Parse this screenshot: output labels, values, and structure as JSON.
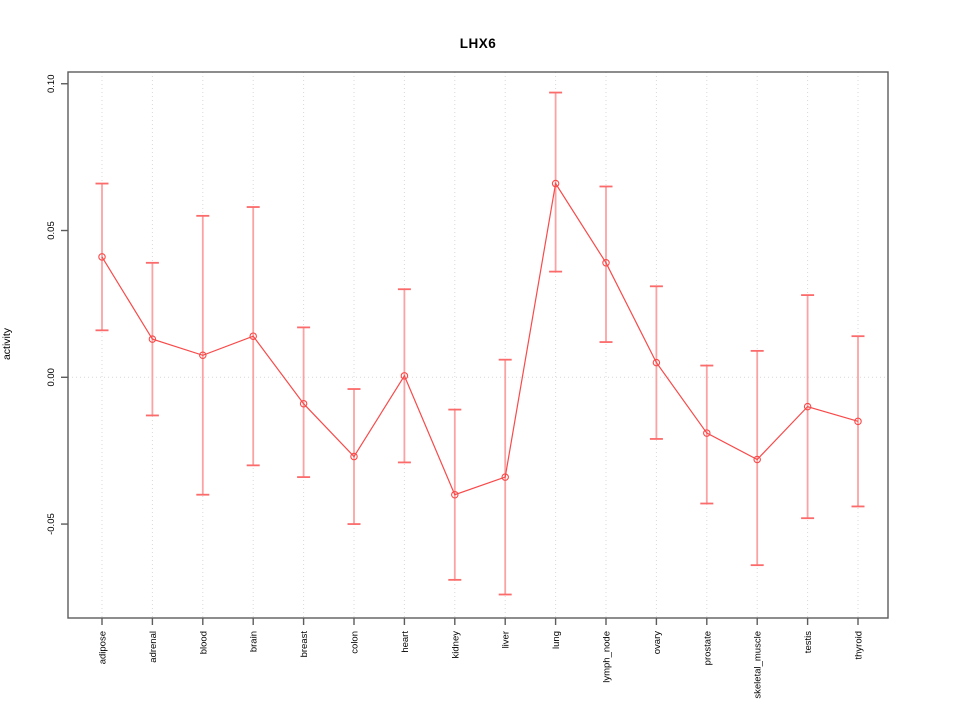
{
  "chart_data": {
    "type": "line",
    "title": "LHX6",
    "xlabel": "",
    "ylabel": "activity",
    "categories": [
      "adipose",
      "adrenal",
      "blood",
      "brain",
      "breast",
      "colon",
      "heart",
      "kidney",
      "liver",
      "lung",
      "lymph_node",
      "ovary",
      "prostate",
      "skeletal_muscle",
      "testis",
      "thyroid"
    ],
    "series": [
      {
        "name": "activity",
        "values": [
          0.041,
          0.013,
          0.0075,
          0.014,
          -0.009,
          -0.027,
          0.0005,
          -0.04,
          -0.034,
          0.066,
          0.039,
          0.005,
          -0.019,
          -0.028,
          -0.01,
          -0.015
        ],
        "error_low": [
          0.016,
          -0.013,
          -0.04,
          -0.03,
          -0.034,
          -0.05,
          -0.029,
          -0.069,
          -0.074,
          0.036,
          0.012,
          -0.021,
          -0.043,
          -0.064,
          -0.048,
          -0.044
        ],
        "error_high": [
          0.066,
          0.039,
          0.055,
          0.058,
          0.017,
          -0.004,
          0.03,
          -0.011,
          0.006,
          0.097,
          0.065,
          0.031,
          0.004,
          0.009,
          0.028,
          0.014
        ]
      }
    ],
    "yticks": {
      "values": [
        0.1,
        0.05,
        0.0,
        -0.05
      ],
      "labels": [
        "0.10",
        "0.05",
        "0.00",
        "-0.05"
      ]
    },
    "ylim": [
      -0.082,
      0.104
    ],
    "grid": "vertical dotted gridline at each category; dotted horizontal line at y=0",
    "legend": "none",
    "marker": "open-circle",
    "colors": {
      "line": "#f84a4a",
      "marker": "#f84a4a",
      "error_bar": "#fba3a3",
      "error_cap": "#fb6b6b",
      "gridline": "#d9d9d9",
      "box": "#5c5c5c",
      "text": "#000000"
    }
  }
}
